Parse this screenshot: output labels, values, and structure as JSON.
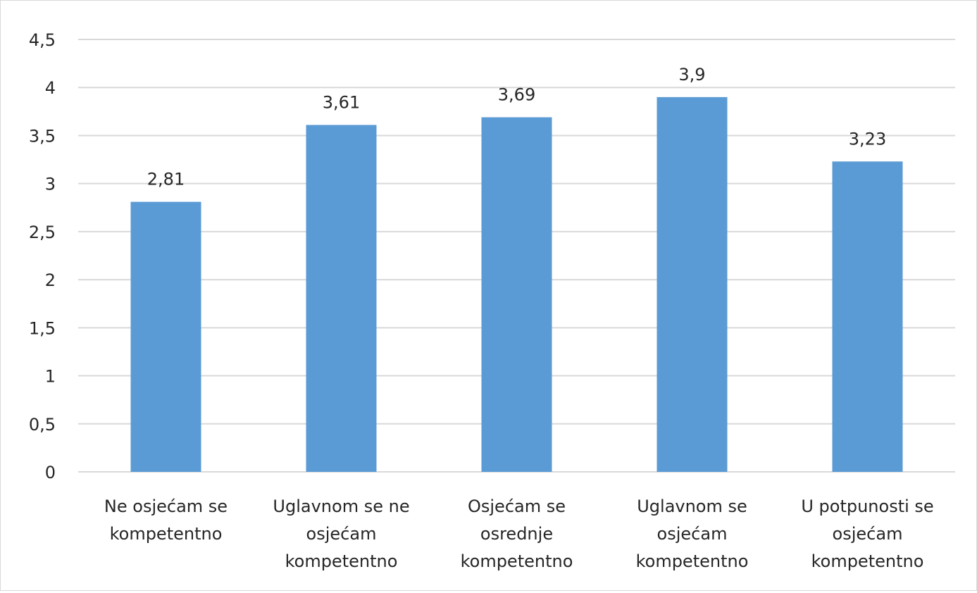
{
  "chart_data": {
    "type": "bar",
    "categories": [
      [
        "Ne osjećam se",
        "kompetentno"
      ],
      [
        "Uglavnom se ne",
        "osjećam",
        "kompetentno"
      ],
      [
        "Osjećam se",
        "osrednje",
        "kompetentno"
      ],
      [
        "Uglavnom se",
        "osjećam",
        "kompetentno"
      ],
      [
        "U potpunosti se",
        "osjećam",
        "kompetentno"
      ]
    ],
    "values": [
      2.81,
      3.61,
      3.69,
      3.9,
      3.23
    ],
    "data_labels": [
      "2,81",
      "3,61",
      "3,69",
      "3,9",
      "3,23"
    ],
    "y_ticks": [
      0,
      0.5,
      1,
      1.5,
      2,
      2.5,
      3,
      3.5,
      4,
      4.5
    ],
    "y_tick_labels": [
      "0",
      "0,5",
      "1",
      "1,5",
      "2",
      "2,5",
      "3",
      "3,5",
      "4",
      "4,5"
    ],
    "ylim": [
      0,
      4.5
    ],
    "grid": true,
    "legend": "none",
    "title": "",
    "xlabel": "",
    "ylabel": "",
    "colors": {
      "bar": "#5b9bd5",
      "grid": "#d9d9d9",
      "text": "#262626"
    }
  }
}
